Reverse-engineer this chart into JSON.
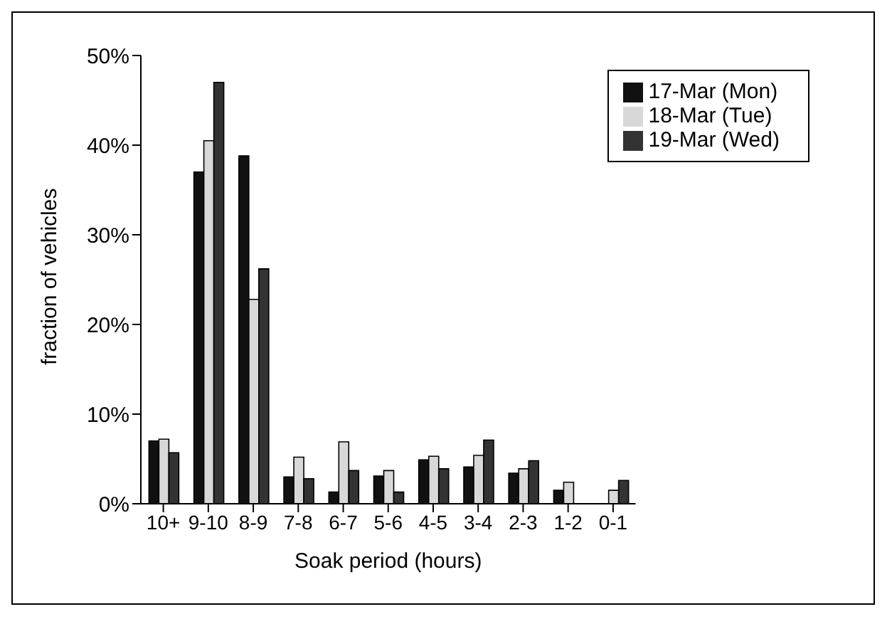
{
  "chart_data": {
    "type": "bar",
    "xlabel": "Soak period (hours)",
    "ylabel": "fraction of vehicles",
    "categories": [
      "10+",
      "9-10",
      "8-9",
      "7-8",
      "6-7",
      "5-6",
      "4-5",
      "3-4",
      "2-3",
      "1-2",
      "0-1"
    ],
    "series": [
      {
        "name": "17-Mar (Mon)",
        "color": "#111111",
        "values": [
          7.0,
          37.0,
          38.8,
          3.0,
          1.3,
          3.1,
          4.9,
          4.1,
          3.4,
          1.5,
          0
        ]
      },
      {
        "name": "18-Mar (Tue)",
        "color": "#d8d8d8",
        "values": [
          7.2,
          40.5,
          22.8,
          5.2,
          6.9,
          3.7,
          5.3,
          5.4,
          3.9,
          2.4,
          1.5
        ]
      },
      {
        "name": "19-Mar (Wed)",
        "color": "#333333",
        "values": [
          5.7,
          47.0,
          26.2,
          2.8,
          3.7,
          1.3,
          3.9,
          7.1,
          4.8,
          0,
          2.6
        ]
      }
    ],
    "ylim": [
      0,
      50
    ],
    "yticks": [
      {
        "value": 0,
        "label": "0%"
      },
      {
        "value": 10,
        "label": "10%"
      },
      {
        "value": 20,
        "label": "20%"
      },
      {
        "value": 30,
        "label": "30%"
      },
      {
        "value": 40,
        "label": "40%"
      },
      {
        "value": 50,
        "label": "50%"
      }
    ],
    "grid": false,
    "legend": "top right"
  }
}
